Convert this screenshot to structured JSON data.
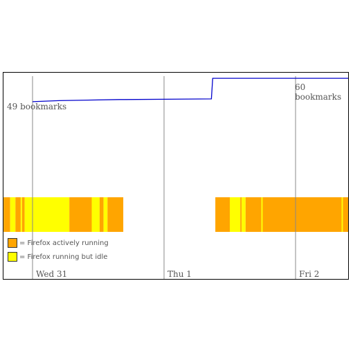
{
  "chart_data": {
    "type": "timeline",
    "days": [
      "Wed 31",
      "Thu 1",
      "Fri 2"
    ],
    "bookmarks": {
      "start_label": "49 bookmarks",
      "end_label": "60 bookmarks",
      "series": [
        {
          "t": 0.0,
          "v": 49
        },
        {
          "t": 0.2,
          "v": 49.5
        },
        {
          "t": 0.66,
          "v": 50
        },
        {
          "t": 0.7,
          "v": 50
        },
        {
          "t": 1.36,
          "v": 50.3
        },
        {
          "t": 1.37,
          "v": 60
        },
        {
          "t": 2.4,
          "v": 60
        }
      ],
      "ylim": [
        48,
        61
      ]
    },
    "activity": {
      "legend": [
        {
          "label": "= Firefox actively running",
          "color": "#FFA500",
          "state": "active"
        },
        {
          "label": "= Firefox running but idle",
          "color": "#FFFF00",
          "state": "idle"
        }
      ],
      "segments": [
        {
          "t0": -0.22,
          "t1": -0.17,
          "state": "active"
        },
        {
          "t0": -0.17,
          "t1": -0.13,
          "state": "idle"
        },
        {
          "t0": -0.13,
          "t1": -0.09,
          "state": "active"
        },
        {
          "t0": -0.09,
          "t1": -0.08,
          "state": "idle"
        },
        {
          "t0": -0.08,
          "t1": -0.06,
          "state": "active"
        },
        {
          "t0": -0.06,
          "t1": 0.28,
          "state": "idle"
        },
        {
          "t0": 0.28,
          "t1": 0.45,
          "state": "active"
        },
        {
          "t0": 0.45,
          "t1": 0.51,
          "state": "idle"
        },
        {
          "t0": 0.51,
          "t1": 0.54,
          "state": "active"
        },
        {
          "t0": 0.54,
          "t1": 0.57,
          "state": "idle"
        },
        {
          "t0": 0.57,
          "t1": 0.69,
          "state": "active"
        },
        {
          "t0": 1.39,
          "t1": 1.5,
          "state": "active"
        },
        {
          "t0": 1.5,
          "t1": 1.58,
          "state": "idle"
        },
        {
          "t0": 1.58,
          "t1": 1.59,
          "state": "active"
        },
        {
          "t0": 1.59,
          "t1": 1.62,
          "state": "idle"
        },
        {
          "t0": 1.62,
          "t1": 1.74,
          "state": "active"
        },
        {
          "t0": 1.74,
          "t1": 1.75,
          "state": "idle"
        },
        {
          "t0": 1.75,
          "t1": 2.35,
          "state": "active"
        },
        {
          "t0": 2.35,
          "t1": 2.36,
          "state": "idle"
        },
        {
          "t0": 2.36,
          "t1": 2.4,
          "state": "active"
        }
      ]
    },
    "colors": {
      "line": "#0000CC",
      "gridline": "#888888",
      "active": "#FFA500",
      "idle": "#FFFF00"
    }
  }
}
